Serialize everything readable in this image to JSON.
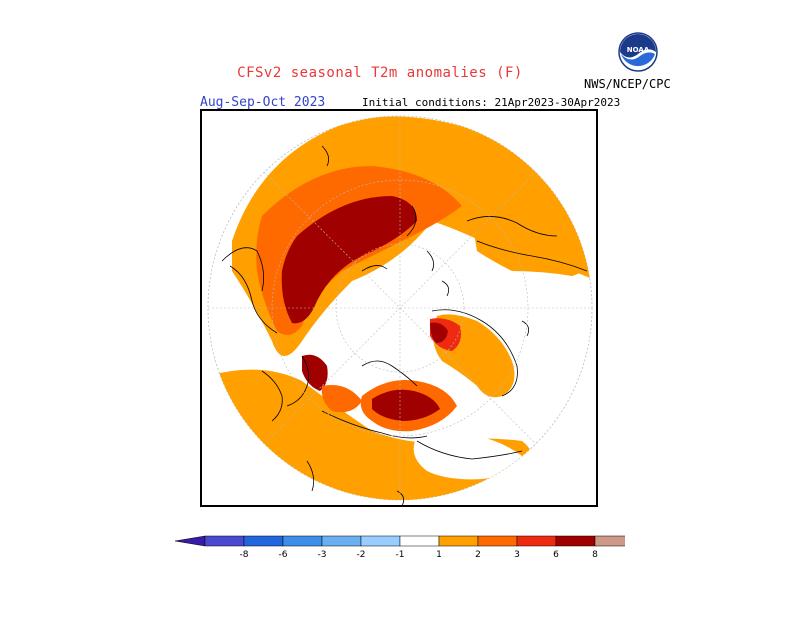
{
  "header": {
    "title": "CFSv2 seasonal T2m anomalies (F)",
    "season": "Aug-Sep-Oct 2023",
    "initial_conditions": "Initial conditions: 21Apr2023-30Apr2023",
    "agency": "NWS/NCEP/CPC",
    "logo_text": "NOAA"
  },
  "colors": {
    "title": "#e8393a",
    "season": "#3344cc",
    "land": "#ffffff",
    "coast": "#000000"
  },
  "legend": {
    "ticks": [
      "-8",
      "-6",
      "-3",
      "-2",
      "-1",
      "1",
      "2",
      "3",
      "6",
      "8"
    ],
    "bins": [
      {
        "color": "#3a1aa8"
      },
      {
        "color": "#4a4ad0"
      },
      {
        "color": "#2266dd"
      },
      {
        "color": "#3c8ee8"
      },
      {
        "color": "#6ab0f0"
      },
      {
        "color": "#99ccff"
      },
      {
        "color": "#ffffff"
      },
      {
        "color": "#ff9f00"
      },
      {
        "color": "#ff6a00"
      },
      {
        "color": "#ee2a10"
      },
      {
        "color": "#a00000"
      },
      {
        "color": "#cc9988"
      },
      {
        "color": "#8a5a4a"
      }
    ]
  }
}
